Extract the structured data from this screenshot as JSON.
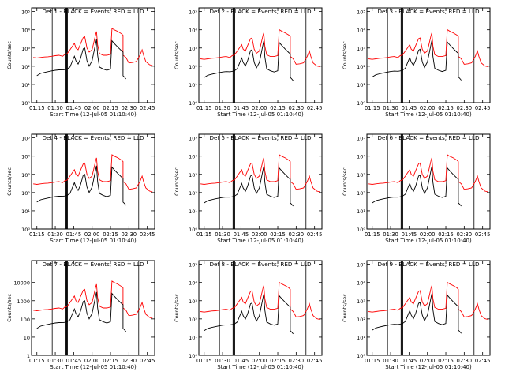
{
  "figure": {
    "xlabel": "Start Time (12-Jul-05 01:10:40)",
    "ylabel": "Counts/sec",
    "x_tick_labels": [
      "01:15",
      "01:30",
      "01:45",
      "02:00",
      "02:15",
      "02:30",
      "02:45"
    ],
    "x_ticks_hours": [
      1.25,
      1.5,
      1.75,
      2.0,
      2.25,
      2.5,
      2.75
    ],
    "x_range_hours": [
      1.1778,
      2.85
    ],
    "exponent_y_ticks": [
      {
        "label": "10⁰",
        "value": 1
      },
      {
        "label": "10¹",
        "value": 10
      },
      {
        "label": "10²",
        "value": 100
      },
      {
        "label": "10³",
        "value": 1000
      },
      {
        "label": "10⁴",
        "value": 10000
      },
      {
        "label": "10⁵",
        "value": 100000
      }
    ],
    "plain_y_ticks": [
      {
        "label": "1",
        "value": 1
      },
      {
        "label": "10",
        "value": 10
      },
      {
        "label": "100",
        "value": 100
      },
      {
        "label": "1000",
        "value": 1000
      },
      {
        "label": "10000",
        "value": 10000
      }
    ],
    "vertical_markers_hours": [
      1.4583,
      1.6417,
      1.65,
      1.6583,
      1.6667,
      2.6333
    ],
    "colors": {
      "events": "#000000",
      "lld": "#ff0000",
      "axes": "#000000"
    }
  },
  "chart_data": [
    {
      "type": "line",
      "title": "Det 1 - BLACK = Events, RED = LLD",
      "ytick_style": "exponent",
      "events_scale": 1.0,
      "lld_scale": 1.0
    },
    {
      "type": "line",
      "title": "Det 2 - BLACK = Events, RED = LLD",
      "ytick_style": "exponent",
      "events_scale": 0.8,
      "lld_scale": 0.85
    },
    {
      "type": "line",
      "title": "Det 3 - BLACK = Events, RED = LLD",
      "ytick_style": "exponent",
      "events_scale": 0.85,
      "lld_scale": 0.85
    },
    {
      "type": "line",
      "title": "Det 4 - BLACK = Events, RED = LLD",
      "ytick_style": "exponent",
      "events_scale": 1.0,
      "lld_scale": 1.0
    },
    {
      "type": "line",
      "title": "Det 5 - BLACK = Events, RED = LLD",
      "ytick_style": "exponent",
      "events_scale": 0.9,
      "lld_scale": 1.0
    },
    {
      "type": "line",
      "title": "Det 6 - BLACK = Events, RED = LLD",
      "ytick_style": "exponent",
      "events_scale": 0.9,
      "lld_scale": 1.0
    },
    {
      "type": "line",
      "title": "Det 7 - BLACK = Events, RED = LLD",
      "ytick_style": "plain",
      "events_scale": 1.0,
      "lld_scale": 1.0
    },
    {
      "type": "line",
      "title": "Det 8 - BLACK = Events, RED = LLD",
      "ytick_style": "exponent",
      "events_scale": 0.75,
      "lld_scale": 0.85
    },
    {
      "type": "line",
      "title": "Det 9 - BLACK = Events, RED = LLD",
      "ytick_style": "exponent",
      "events_scale": 0.8,
      "lld_scale": 0.85
    }
  ],
  "series_profile": {
    "events": [
      [
        1.25,
        30
      ],
      [
        1.3,
        40
      ],
      [
        1.35,
        45
      ],
      [
        1.4,
        50
      ],
      [
        1.45,
        55
      ],
      [
        1.5,
        60
      ],
      [
        1.55,
        63
      ],
      [
        1.6,
        62
      ],
      [
        1.63,
        65
      ],
      [
        1.66,
        70
      ],
      [
        1.7,
        90
      ],
      [
        1.73,
        180
      ],
      [
        1.76,
        350
      ],
      [
        1.78,
        200
      ],
      [
        1.81,
        130
      ],
      [
        1.84,
        250
      ],
      [
        1.88,
        900
      ],
      [
        1.9,
        1000
      ],
      [
        1.93,
        200
      ],
      [
        1.96,
        100
      ],
      [
        2.0,
        200
      ],
      [
        2.02,
        500
      ],
      [
        2.05,
        2000
      ],
      [
        2.06,
        3000
      ],
      [
        2.075,
        400
      ],
      [
        2.1,
        90
      ],
      [
        2.15,
        70
      ],
      [
        2.2,
        60
      ],
      [
        2.25,
        70
      ],
      [
        2.27,
        2500
      ],
      [
        2.3,
        1800
      ],
      [
        2.35,
        1100
      ],
      [
        2.4,
        700
      ],
      [
        2.42,
        600
      ],
      [
        2.42,
        30
      ],
      [
        2.44,
        25
      ],
      [
        2.46,
        20
      ]
    ],
    "lld": [
      [
        1.2,
        300
      ],
      [
        1.25,
        280
      ],
      [
        1.3,
        300
      ],
      [
        1.35,
        320
      ],
      [
        1.4,
        330
      ],
      [
        1.45,
        350
      ],
      [
        1.5,
        380
      ],
      [
        1.55,
        400
      ],
      [
        1.6,
        350
      ],
      [
        1.63,
        450
      ],
      [
        1.66,
        480
      ],
      [
        1.7,
        800
      ],
      [
        1.73,
        1200
      ],
      [
        1.76,
        1800
      ],
      [
        1.78,
        1000
      ],
      [
        1.81,
        800
      ],
      [
        1.84,
        1600
      ],
      [
        1.88,
        3800
      ],
      [
        1.9,
        4200
      ],
      [
        1.93,
        1000
      ],
      [
        1.96,
        600
      ],
      [
        2.0,
        800
      ],
      [
        2.02,
        1800
      ],
      [
        2.05,
        6000
      ],
      [
        2.06,
        8000
      ],
      [
        2.075,
        1500
      ],
      [
        2.1,
        500
      ],
      [
        2.15,
        400
      ],
      [
        2.2,
        400
      ],
      [
        2.25,
        450
      ],
      [
        2.27,
        12000
      ],
      [
        2.3,
        10000
      ],
      [
        2.35,
        8000
      ],
      [
        2.4,
        6000
      ],
      [
        2.42,
        5000
      ],
      [
        2.42,
        400
      ],
      [
        2.44,
        350
      ],
      [
        2.46,
        300
      ],
      [
        2.5,
        150
      ],
      [
        2.55,
        160
      ],
      [
        2.6,
        180
      ],
      [
        2.65,
        400
      ],
      [
        2.68,
        800
      ],
      [
        2.7,
        400
      ],
      [
        2.73,
        180
      ],
      [
        2.78,
        120
      ],
      [
        2.82,
        110
      ]
    ]
  }
}
